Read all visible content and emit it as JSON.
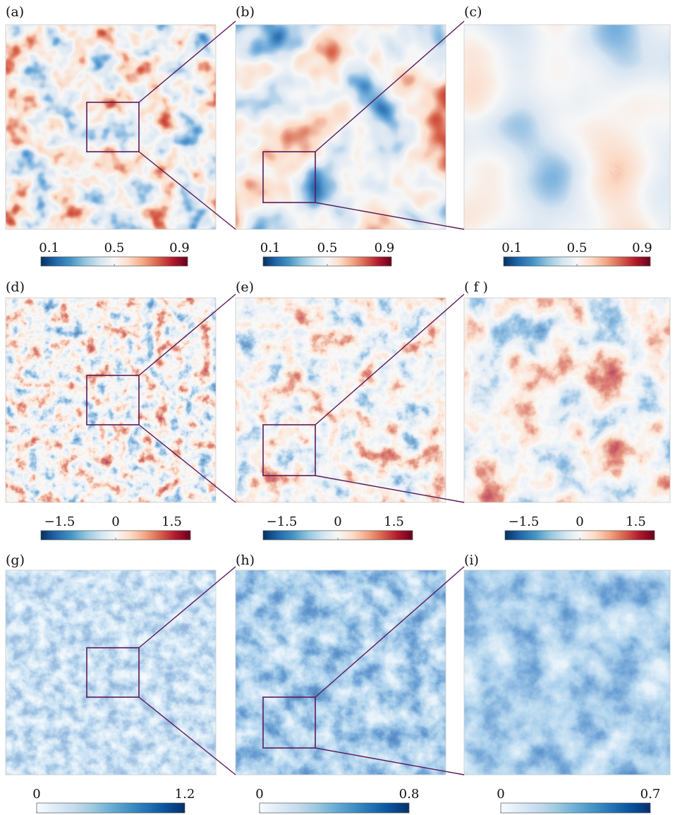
{
  "figure": {
    "panels": [
      {
        "label": "(a)",
        "field": "scalar",
        "zoom": 1,
        "colorbar": {
          "scheme": "diverging",
          "ticks": [
            "0.1",
            "0.5",
            "0.9"
          ],
          "tick_values": [
            0.1,
            0.5,
            0.9
          ],
          "range": [
            0.05,
            0.95
          ]
        }
      },
      {
        "label": "(b)",
        "field": "scalar",
        "zoom": 2,
        "colorbar": {
          "scheme": "diverging",
          "ticks": [
            "0.1",
            "0.5",
            "0.9"
          ],
          "tick_values": [
            0.1,
            0.5,
            0.9
          ],
          "range": [
            0.05,
            0.95
          ]
        }
      },
      {
        "label": "(c)",
        "field": "scalar",
        "zoom": 3,
        "colorbar": {
          "scheme": "diverging",
          "ticks": [
            "0.1",
            "0.5",
            "0.9"
          ],
          "tick_values": [
            0.1,
            0.5,
            0.9
          ],
          "range": [
            0.05,
            0.95
          ]
        }
      },
      {
        "label": "(d)",
        "field": "vorticity",
        "zoom": 1,
        "colorbar": {
          "scheme": "diverging",
          "ticks": [
            "−1.5",
            "0",
            "1.5"
          ],
          "tick_values": [
            -1.5,
            0,
            1.5
          ],
          "range": [
            -2,
            2
          ]
        }
      },
      {
        "label": "(e)",
        "field": "vorticity",
        "zoom": 2,
        "colorbar": {
          "scheme": "diverging",
          "ticks": [
            "−1.5",
            "0",
            "1.5"
          ],
          "tick_values": [
            -1.5,
            0,
            1.5
          ],
          "range": [
            -2,
            2
          ]
        }
      },
      {
        "label": "( f )",
        "field": "vorticity",
        "zoom": 3,
        "colorbar": {
          "scheme": "diverging",
          "ticks": [
            "−1.5",
            "0",
            "1.5"
          ],
          "tick_values": [
            -1.5,
            0,
            1.5
          ],
          "range": [
            -2,
            2
          ]
        }
      },
      {
        "label": "(g)",
        "field": "magnitude",
        "zoom": 1,
        "colorbar": {
          "scheme": "sequential",
          "ticks": [
            "0",
            "1.2"
          ],
          "tick_values": [
            0,
            1.2
          ],
          "range": [
            0,
            1.2
          ]
        }
      },
      {
        "label": "(h)",
        "field": "magnitude",
        "zoom": 2,
        "colorbar": {
          "scheme": "sequential",
          "ticks": [
            "0",
            "0.8"
          ],
          "tick_values": [
            0,
            0.8
          ],
          "range": [
            0,
            0.8
          ]
        }
      },
      {
        "label": "(i)",
        "field": "magnitude",
        "zoom": 3,
        "colorbar": {
          "scheme": "sequential",
          "ticks": [
            "0",
            "0.7"
          ],
          "tick_values": [
            0,
            0.7
          ],
          "range": [
            0,
            0.7
          ]
        }
      }
    ],
    "colors": {
      "diverging": [
        "#053061",
        "#2166ac",
        "#4393c3",
        "#92c5de",
        "#d1e5f0",
        "#f7f7f7",
        "#fddbc7",
        "#f4a582",
        "#d6604d",
        "#b2182b",
        "#67001f"
      ],
      "sequential": [
        "#f7fbff",
        "#deebf7",
        "#c6dbef",
        "#9ecae1",
        "#6baed6",
        "#4292c6",
        "#2171b5",
        "#08519c",
        "#08306b"
      ],
      "zoom_box": "#5a1a5a"
    }
  }
}
